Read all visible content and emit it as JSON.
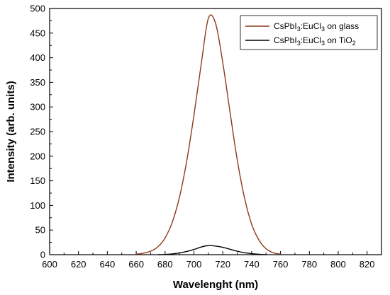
{
  "chart_data": {
    "type": "line",
    "title": "",
    "xlabel": "Wavelenght (nm)",
    "ylabel": "Intensity (arb. units)",
    "xlim": [
      600,
      830
    ],
    "ylim": [
      0,
      500
    ],
    "xticks": [
      600,
      620,
      640,
      660,
      680,
      700,
      720,
      740,
      760,
      780,
      800,
      820
    ],
    "yticks": [
      0,
      50,
      100,
      150,
      200,
      250,
      300,
      350,
      400,
      450,
      500
    ],
    "grid": false,
    "legend_position": "top-right",
    "series": [
      {
        "name": "CsPbI3:EuCl3 on glass",
        "name_parts": {
          "a": "CsPbI",
          "sub1": "3",
          "b": ":EuCl",
          "sub2": "3",
          "c": " on glass"
        },
        "color": "#8B3A1A",
        "x": [
          660,
          665,
          670,
          675,
          680,
          685,
          690,
          695,
          700,
          705,
          710,
          715,
          720,
          725,
          730,
          735,
          740,
          745,
          750,
          755,
          760
        ],
        "values": [
          1,
          3,
          7,
          16,
          34,
          66,
          117,
          190,
          283,
          386,
          480,
          470,
          390,
          290,
          193,
          116,
          62,
          30,
          12,
          4,
          1
        ]
      },
      {
        "name": "CsPbI3:EuCl3 on TiO2",
        "name_parts": {
          "a": "CsPbI",
          "sub1": "3",
          "b": ":EuCl",
          "sub2": "3",
          "c": " on TiO",
          "sub3": "2"
        },
        "color": "#000000",
        "x": [
          675,
          680,
          685,
          690,
          695,
          700,
          705,
          710,
          715,
          720,
          725,
          730,
          735,
          740,
          745,
          750
        ],
        "values": [
          0,
          0.5,
          1.5,
          3.5,
          6.5,
          10.5,
          15.5,
          18.5,
          17.5,
          15,
          11,
          7,
          4,
          2,
          0.8,
          0
        ]
      }
    ]
  }
}
